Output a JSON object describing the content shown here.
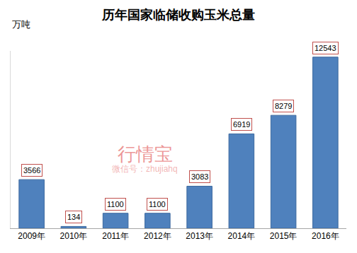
{
  "chart_data": {
    "type": "bar",
    "title": "历年国家临储收购玉米总量",
    "ylabel": "万吨",
    "categories": [
      "2009年",
      "2010年",
      "2011年",
      "2012年",
      "2013年",
      "2014年",
      "2015年",
      "2016年"
    ],
    "values": [
      3566,
      134,
      1100,
      1100,
      3083,
      6919,
      8279,
      12543
    ],
    "color": "#4f81bd",
    "ylim": [
      0,
      13000
    ],
    "grid": false,
    "data_labels": true,
    "tick_labels": "x",
    "annotations": [
      "行情宝",
      "微信号：zhujiahq"
    ]
  }
}
